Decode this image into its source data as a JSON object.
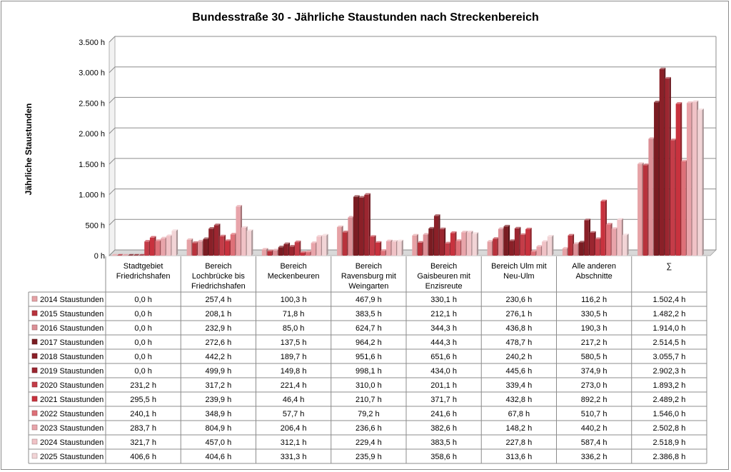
{
  "chart_data": {
    "type": "bar",
    "title": "Bundesstraße 30 - Jährliche Staustunden nach Streckenbereich",
    "ylabel": "Jährliche Staustunden",
    "xlabel": "",
    "ylim": [
      0,
      3500
    ],
    "ytick_values": [
      0,
      500,
      1000,
      1500,
      2000,
      2500,
      3000,
      3500
    ],
    "ytick_labels": [
      "0 h",
      "500 h",
      "1.000 h",
      "1.500 h",
      "2.000 h",
      "2.500 h",
      "3.000 h",
      "3.500 h"
    ],
    "grid": true,
    "legend_position": "table-left",
    "categories": [
      [
        "Stadtgebiet",
        "Friedrichshafen"
      ],
      [
        "Bereich",
        "Lochbrücke bis",
        "Friedrichshafen"
      ],
      [
        "Bereich",
        "Meckenbeuren"
      ],
      [
        "Bereich",
        "Ravensburg mit",
        "Weingarten"
      ],
      [
        "Bereich",
        "Gaisbeuren mit",
        "Enzisreute"
      ],
      [
        "Bereich Ulm mit",
        "Neu-Ulm"
      ],
      [
        "Alle anderen",
        "Abschnitte"
      ],
      [
        "∑"
      ]
    ],
    "series": [
      {
        "name": "2014 Staustunden",
        "color": "#e6a2a6",
        "values": [
          0.0,
          257.4,
          100.3,
          467.9,
          330.1,
          230.6,
          116.2,
          1502.4
        ],
        "labels": [
          "0,0 h",
          "257,4 h",
          "100,3 h",
          "467,9 h",
          "330,1 h",
          "230,6 h",
          "116,2 h",
          "1.502,4 h"
        ]
      },
      {
        "name": "2015 Staustunden",
        "color": "#b8323c",
        "values": [
          0.0,
          208.1,
          71.8,
          383.5,
          212.1,
          276.1,
          330.5,
          1482.2
        ],
        "labels": [
          "0,0 h",
          "208,1 h",
          "71,8 h",
          "383,5 h",
          "212,1 h",
          "276,1 h",
          "330,5 h",
          "1.482,2 h"
        ]
      },
      {
        "name": "2016 Staustunden",
        "color": "#dc8f96",
        "values": [
          0.0,
          232.9,
          85.0,
          624.7,
          344.3,
          436.8,
          190.3,
          1914.0
        ],
        "labels": [
          "0,0 h",
          "232,9 h",
          "85,0 h",
          "624,7 h",
          "344,3 h",
          "436,8 h",
          "190,3 h",
          "1.914,0 h"
        ]
      },
      {
        "name": "2017 Staustunden",
        "color": "#7a1c22",
        "values": [
          0.0,
          272.6,
          137.5,
          964.2,
          444.3,
          478.7,
          217.2,
          2514.5
        ],
        "labels": [
          "0,0 h",
          "272,6 h",
          "137,5 h",
          "964,2 h",
          "444,3 h",
          "478,7 h",
          "217,2 h",
          "2.514,5 h"
        ]
      },
      {
        "name": "2018 Staustunden",
        "color": "#8a2028",
        "values": [
          0.0,
          442.2,
          189.7,
          951.6,
          651.6,
          240.2,
          580.5,
          3055.7
        ],
        "labels": [
          "0,0 h",
          "442,2 h",
          "189,7 h",
          "951,6 h",
          "651,6 h",
          "240,2 h",
          "580,5 h",
          "3.055,7 h"
        ]
      },
      {
        "name": "2019 Staustunden",
        "color": "#9b2630",
        "values": [
          0.0,
          499.9,
          149.8,
          998.1,
          434.0,
          445.6,
          374.9,
          2902.3
        ],
        "labels": [
          "0,0 h",
          "499,9 h",
          "149,8 h",
          "998,1 h",
          "434,0 h",
          "445,6 h",
          "374,9 h",
          "2.902,3 h"
        ]
      },
      {
        "name": "2020 Staustunden",
        "color": "#c43c48",
        "values": [
          231.2,
          317.2,
          221.4,
          310.0,
          201.1,
          339.4,
          273.0,
          1893.2
        ],
        "labels": [
          "231,2 h",
          "317,2 h",
          "221,4 h",
          "310,0 h",
          "201,1 h",
          "339,4 h",
          "273,0 h",
          "1.893,2 h"
        ]
      },
      {
        "name": "2021 Staustunden",
        "color": "#c8323e",
        "values": [
          295.5,
          239.9,
          46.4,
          210.7,
          371.7,
          432.8,
          892.2,
          2489.2
        ],
        "labels": [
          "295,5 h",
          "239,9 h",
          "46,4 h",
          "210,7 h",
          "371,7 h",
          "432,8 h",
          "892,2 h",
          "2.489,2 h"
        ]
      },
      {
        "name": "2022 Staustunden",
        "color": "#de7078",
        "values": [
          240.1,
          348.9,
          57.7,
          79.2,
          241.6,
          67.8,
          510.7,
          1546.0
        ],
        "labels": [
          "240,1 h",
          "348,9 h",
          "57,7 h",
          "79,2 h",
          "241,6 h",
          "67,8 h",
          "510,7 h",
          "1.546,0 h"
        ]
      },
      {
        "name": "2023 Staustunden",
        "color": "#e8a4aa",
        "values": [
          283.7,
          804.9,
          206.4,
          236.6,
          382.6,
          148.2,
          440.2,
          2502.8
        ],
        "labels": [
          "283,7 h",
          "804,9 h",
          "206,4 h",
          "236,6 h",
          "382,6 h",
          "148,2 h",
          "440,2 h",
          "2.502,8 h"
        ]
      },
      {
        "name": "2024 Staustunden",
        "color": "#f0c2c6",
        "values": [
          321.7,
          457.0,
          312.1,
          229.4,
          383.5,
          227.8,
          587.4,
          2518.9
        ],
        "labels": [
          "321,7 h",
          "457,0 h",
          "312,1 h",
          "229,4 h",
          "383,5 h",
          "227,8 h",
          "587,4 h",
          "2.518,9 h"
        ]
      },
      {
        "name": "2025 Staustunden",
        "color": "#f2d4d6",
        "values": [
          406.6,
          404.6,
          331.3,
          235.9,
          358.6,
          313.6,
          336.2,
          2386.8
        ],
        "labels": [
          "406,6 h",
          "404,6 h",
          "331,3 h",
          "235,9 h",
          "358,6 h",
          "313,6 h",
          "336,2 h",
          "2.386,8 h"
        ]
      }
    ]
  }
}
